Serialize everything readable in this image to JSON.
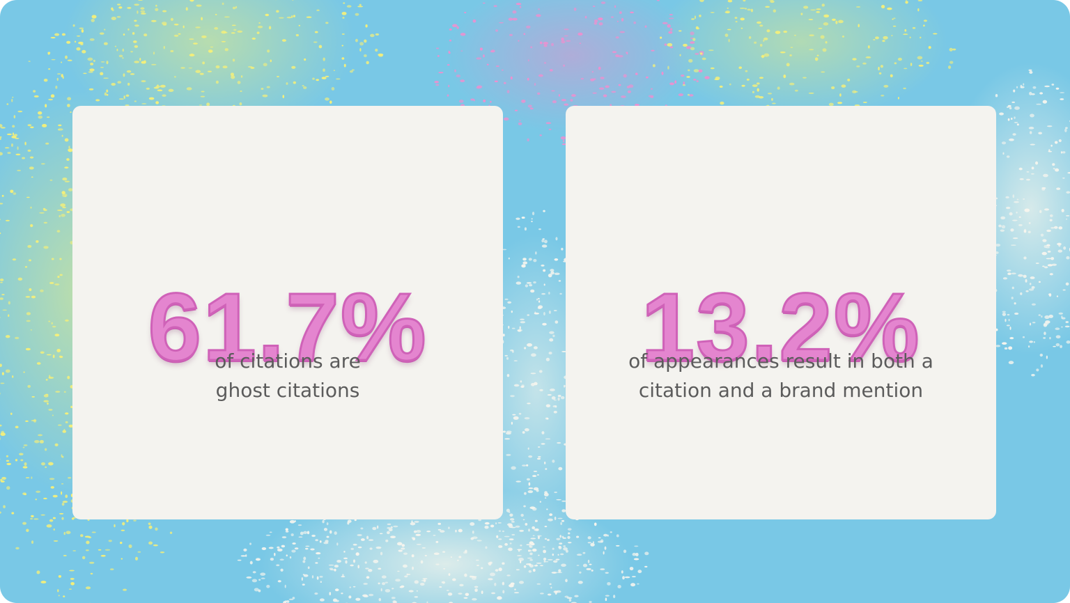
{
  "cards": [
    {
      "value": "61.7%",
      "caption": [
        "of citations are",
        "ghost citations"
      ]
    },
    {
      "value": "13.2%",
      "caption": [
        "of appearances result in both a",
        "citation and a brand mention"
      ]
    }
  ]
}
